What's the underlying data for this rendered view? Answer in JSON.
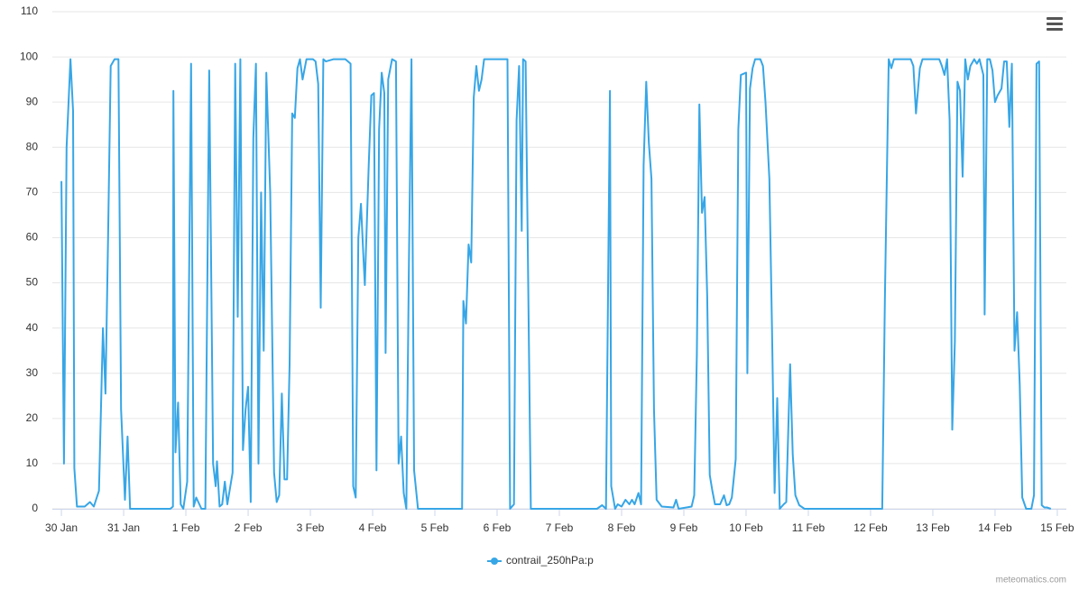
{
  "chart_data": {
    "type": "line",
    "x": [
      0,
      1,
      2,
      3.5,
      4.5,
      5,
      6,
      9,
      11,
      12.5,
      14.5,
      16,
      17,
      18,
      19,
      20.5,
      22,
      23,
      24.5,
      25.5,
      26.5,
      42,
      43,
      43.2,
      44,
      45,
      46,
      47,
      48.5,
      50,
      51,
      52,
      54,
      55.5,
      57,
      58.5,
      59.5,
      60,
      61,
      62,
      63,
      64,
      66,
      67,
      68,
      69,
      70,
      71,
      72,
      73,
      74,
      75,
      76,
      77,
      78,
      79,
      80.5,
      82,
      83,
      84,
      85,
      86,
      87,
      88,
      89,
      90,
      91,
      92,
      93,
      94.5,
      97,
      98,
      99,
      100,
      101,
      102,
      105,
      107,
      109.5,
      111.5,
      112.5,
      113.5,
      114.5,
      115.5,
      116.5,
      117,
      118.5,
      119.5,
      120.5,
      121.5,
      122.5,
      123.5,
      124.5,
      125,
      126,
      127.5,
      129,
      130,
      131,
      132,
      133,
      134,
      135,
      136,
      137.5,
      154.5,
      155,
      156,
      157,
      158,
      159,
      160,
      161,
      162,
      163,
      166,
      169.5,
      172,
      173,
      174.5,
      175.5,
      176.5,
      177.5,
      178,
      179,
      181,
      206.5,
      208.5,
      210,
      211.5,
      212,
      213.5,
      214.5,
      216,
      217.5,
      219,
      220,
      221,
      222.5,
      223.5,
      224.5,
      225.5,
      226.5,
      227.5,
      228.5,
      229.5,
      231.5,
      236,
      237,
      238,
      243,
      244,
      245,
      246,
      247,
      248,
      249,
      250,
      251,
      252,
      254,
      255.5,
      256.5,
      257.5,
      258.5,
      260,
      261,
      262,
      264,
      264.5,
      265.5,
      266.5,
      267.5,
      269.5,
      270.5,
      271.5,
      273,
      274,
      275,
      276,
      277,
      278.5,
      279.5,
      281,
      282,
      283,
      284.5,
      286.5,
      316.5,
      317.5,
      319,
      320,
      321,
      324,
      327.5,
      328.5,
      329.5,
      331,
      332,
      334.5,
      338.5,
      339.5,
      340.5,
      341.5,
      342.5,
      343.5,
      344.5,
      345.5,
      346.5,
      347.5,
      348.5,
      349.5,
      350.5,
      352,
      353,
      354,
      355.5,
      356,
      357,
      358,
      359,
      360,
      361,
      362.5,
      363.5,
      364.5,
      365.5,
      366.5,
      367.5,
      368.5,
      369.5,
      370.5,
      372,
      374,
      375,
      376,
      377,
      378,
      379,
      380,
      381.5
    ],
    "series": [
      {
        "name": "contrail_250hPa:p",
        "color": "#37a6e6",
        "values": [
          72.5,
          10,
          80,
          99.5,
          88,
          9,
          0.5,
          0.5,
          1.5,
          0.5,
          4,
          40,
          25.5,
          60,
          98,
          99.5,
          99.5,
          22,
          2,
          16,
          0,
          0,
          0.5,
          92.5,
          12.5,
          23.5,
          1,
          0,
          6,
          98.5,
          0.5,
          2.5,
          0,
          0,
          97,
          10,
          5,
          10.5,
          0.5,
          1,
          6,
          1,
          8,
          98.5,
          42.5,
          99.5,
          13,
          22,
          27,
          1.5,
          82,
          98.5,
          10,
          70,
          35,
          96.5,
          70,
          8,
          1.5,
          3,
          25.5,
          6.5,
          6.5,
          32,
          87.5,
          86.5,
          97.5,
          99.5,
          95,
          99.5,
          99.5,
          99,
          94,
          44.5,
          99.5,
          99,
          99.5,
          99.5,
          99.5,
          98.5,
          5,
          2.5,
          60,
          67.5,
          55,
          49.5,
          76,
          91.5,
          92,
          8.5,
          84,
          96.5,
          92,
          34.5,
          95,
          99.5,
          99,
          10,
          16,
          3.5,
          0,
          55,
          99.5,
          8.5,
          0,
          0,
          46,
          41,
          58.5,
          54.5,
          91,
          98,
          92.5,
          95,
          99.5,
          99.5,
          99.5,
          99.5,
          0,
          1,
          86,
          98,
          61.5,
          99.5,
          99,
          0,
          0,
          0.8,
          0,
          92.5,
          5,
          0,
          1,
          0.5,
          2,
          1,
          2,
          1,
          3.5,
          1,
          76,
          94.5,
          81,
          73,
          22,
          2,
          0.5,
          0.3,
          2,
          0,
          0.5,
          3,
          34,
          89.5,
          65.5,
          69,
          47,
          7.5,
          4,
          1,
          1,
          3,
          0.8,
          1,
          2.5,
          11,
          84,
          96,
          96.5,
          30,
          93,
          97.5,
          99.5,
          99.5,
          98,
          90,
          73,
          40,
          3.5,
          24.5,
          0,
          1,
          1.5,
          32,
          12,
          3,
          0.8,
          0,
          0,
          46,
          99.5,
          97.5,
          99.5,
          99.5,
          99.5,
          98,
          87.5,
          97.5,
          99.5,
          99.5,
          99.5,
          98,
          96,
          99.5,
          86,
          17.5,
          37,
          94.5,
          92.5,
          73.5,
          99.5,
          95,
          98,
          99.5,
          98.5,
          99.5,
          96,
          43,
          99.5,
          99.5,
          97,
          90,
          91.5,
          93,
          99,
          99,
          84.5,
          98.5,
          35,
          43.5,
          27.5,
          2.5,
          0,
          0,
          3,
          98.5,
          99,
          0.8,
          0.3,
          0.3,
          0
        ]
      }
    ],
    "xlim": [
      -3.5,
      387.5
    ],
    "xticks": [
      {
        "value": 0,
        "label": "30 Jan"
      },
      {
        "value": 24,
        "label": "31 Jan"
      },
      {
        "value": 48,
        "label": "1 Feb"
      },
      {
        "value": 72,
        "label": "2 Feb"
      },
      {
        "value": 96,
        "label": "3 Feb"
      },
      {
        "value": 120,
        "label": "4 Feb"
      },
      {
        "value": 144,
        "label": "5 Feb"
      },
      {
        "value": 168,
        "label": "6 Feb"
      },
      {
        "value": 192,
        "label": "7 Feb"
      },
      {
        "value": 216,
        "label": "8 Feb"
      },
      {
        "value": 240,
        "label": "9 Feb"
      },
      {
        "value": 264,
        "label": "10 Feb"
      },
      {
        "value": 288,
        "label": "11 Feb"
      },
      {
        "value": 312,
        "label": "12 Feb"
      },
      {
        "value": 336,
        "label": "13 Feb"
      },
      {
        "value": 360,
        "label": "14 Feb"
      },
      {
        "value": 384,
        "label": "15 Feb"
      }
    ],
    "ylim": [
      0,
      110
    ],
    "yticks": [
      0,
      10,
      20,
      30,
      40,
      50,
      60,
      70,
      80,
      90,
      100,
      110
    ],
    "grid": true,
    "credit": "meteomatics.com"
  }
}
